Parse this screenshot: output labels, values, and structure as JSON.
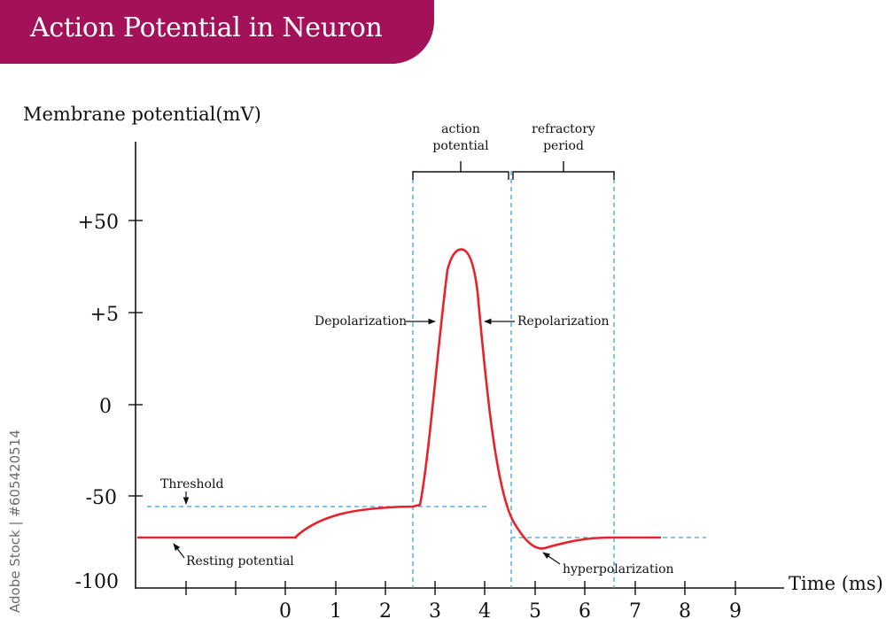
{
  "title": "Action Potential in Neuron",
  "watermark": "Adobe Stock | #605420514",
  "colors": {
    "banner": "#a31259",
    "curve": "#e8222b",
    "guide": "#39a3dc",
    "axis": "#111111"
  },
  "axes": {
    "y_label": "Membrane potential(mV)",
    "x_label": "Time (ms)",
    "y_ticks": [
      "+50",
      "+5",
      "0",
      "-50",
      "-100"
    ],
    "x_ticks": [
      "0",
      "1",
      "2",
      "3",
      "4",
      "5",
      "6",
      "7",
      "8",
      "9"
    ]
  },
  "brackets": {
    "action": [
      "action",
      "potential"
    ],
    "refractory": [
      "refractory",
      "period"
    ]
  },
  "labels": {
    "depolarization": "Depolarization",
    "repolarization": "Repolarization",
    "threshold": "Threshold",
    "resting": "Resting potential",
    "hyperpolarization": "hyperpolarization"
  }
}
